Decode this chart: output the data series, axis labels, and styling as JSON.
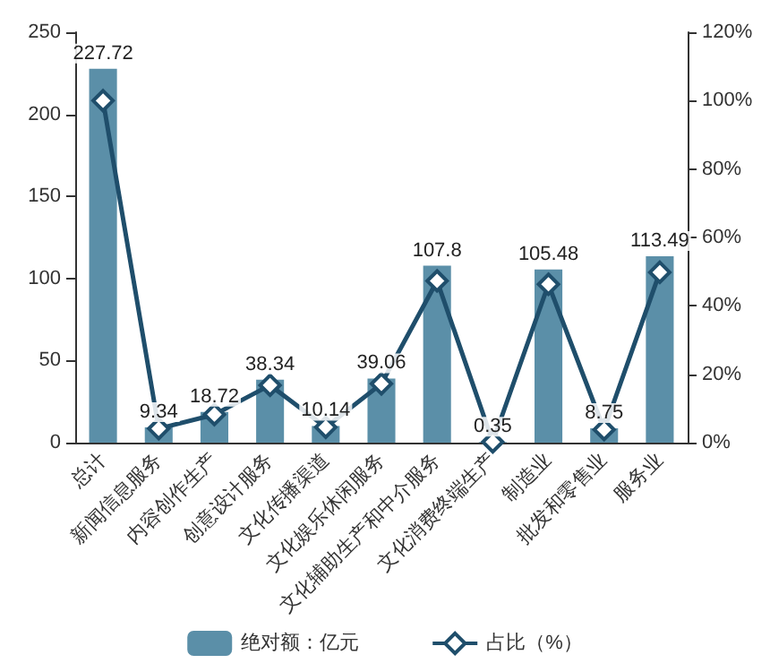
{
  "chart_data": {
    "type": "bar",
    "categories": [
      "总计",
      "新闻信息服务",
      "内容创作生产",
      "创意设计服务",
      "文化传播渠道",
      "文化娱乐休闲服务",
      "文化辅助生产和中介服务",
      "文化消费终端生产",
      "制造业",
      "批发和零售业",
      "服务业"
    ],
    "series": [
      {
        "name": "绝对额：亿元",
        "color": "#5b8fa8",
        "values": [
          227.72,
          9.34,
          18.72,
          38.34,
          10.14,
          39.06,
          107.8,
          0.35,
          105.48,
          8.75,
          113.49
        ],
        "value_labels": [
          "227.72",
          "9.34",
          "18.72",
          "38.34",
          "10.14",
          "39.06",
          "107.8",
          "0.35",
          "105.48",
          "8.75",
          "113.49"
        ]
      },
      {
        "name": "占比（%）",
        "type": "line",
        "axis": "y2",
        "color": "#1f4e6b",
        "marker": "diamond",
        "values": [
          100,
          4.1,
          8.2,
          16.8,
          4.5,
          17.2,
          47.3,
          0.2,
          46.3,
          3.8,
          49.8
        ]
      }
    ],
    "ylim": [
      0,
      250
    ],
    "yticks": [
      0,
      50,
      100,
      150,
      200,
      250
    ],
    "y2lim": [
      0,
      120
    ],
    "y2ticks": [
      {
        "value": 0,
        "label": "0%"
      },
      {
        "value": 20,
        "label": "20%"
      },
      {
        "value": 40,
        "label": "40%"
      },
      {
        "value": 60,
        "label": "60%"
      },
      {
        "value": 80,
        "label": "80%"
      },
      {
        "value": 100,
        "label": "100%"
      },
      {
        "value": 120,
        "label": "120%"
      }
    ],
    "legend": "bottom"
  }
}
